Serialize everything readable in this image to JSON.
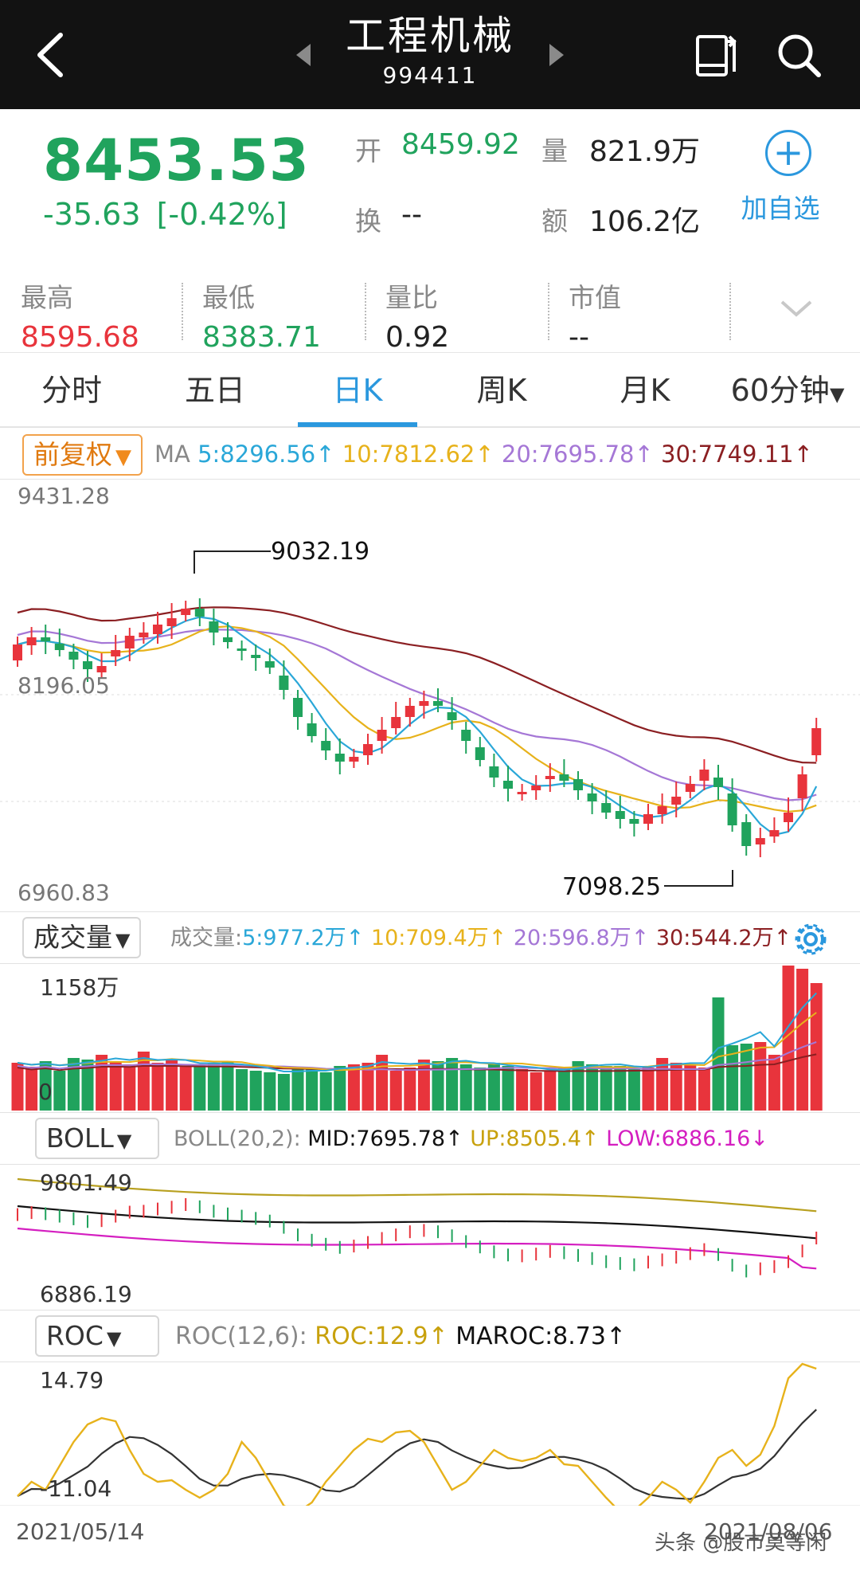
{
  "header": {
    "title": "工程机械",
    "code": "994411",
    "icons": [
      "back-arrow-icon",
      "prev-stock-icon",
      "next-stock-icon",
      "switch-screen-icon",
      "search-icon"
    ]
  },
  "quote": {
    "price": "8453.53",
    "change": "-35.63",
    "change_pct": "[-0.42%]",
    "open_label": "开",
    "open": "8459.92",
    "volume_label": "量",
    "volume": "821.9万",
    "turnover_label": "换",
    "turnover": "--",
    "amount_label": "额",
    "amount": "106.2亿",
    "add_label": "加自选"
  },
  "stats": {
    "high_label": "最高",
    "high": "8595.68",
    "low_label": "最低",
    "low": "8383.71",
    "ratio_label": "量比",
    "ratio": "0.92",
    "mcap_label": "市值",
    "mcap": "--"
  },
  "tabs": [
    "分时",
    "五日",
    "日K",
    "周K",
    "月K",
    "60分钟"
  ],
  "active_tab": "日K",
  "kline": {
    "adjust_label": "前复权",
    "ma_label": "MA",
    "ma5": "5:8296.56↑",
    "ma10": "10:7812.62↑",
    "ma20": "20:7695.78↑",
    "ma30": "30:7749.11↑",
    "y_top": "9431.28",
    "y_mid": "8196.05",
    "y_bottom": "6960.83",
    "high_mark": "9032.19",
    "low_mark": "7098.25"
  },
  "volume": {
    "selector": "成交量",
    "label": "成交量:",
    "ma5": "5:977.2万↑",
    "ma10": "10:709.4万↑",
    "ma20": "20:596.8万↑",
    "ma30": "30:544.2万↑",
    "y_top": "1158万",
    "y_bottom": "0"
  },
  "boll": {
    "selector": "BOLL",
    "params": "BOLL(20,2):",
    "mid": "MID:7695.78↑",
    "up": "UP:8505.4↑",
    "low": "LOW:6886.16↓",
    "y_top": "9801.49",
    "y_bottom": "6886.19"
  },
  "roc": {
    "selector": "ROC",
    "params": "ROC(12,6):",
    "roc": "ROC:12.9↑",
    "maroc": "MAROC:8.73↑",
    "y_top": "14.79",
    "y_bottom": "-11.04",
    "date_start": "2021/05/14",
    "date_end": "2021/08/06"
  },
  "watermark": "头条 @股市莫等闲",
  "colors": {
    "up": "#e8343c",
    "down": "#20a35d",
    "accent": "#2b98de",
    "ma5": "#2aa7d8",
    "ma10": "#e7b21b",
    "ma20": "#a577d6",
    "ma30": "#8b1f22"
  }
}
